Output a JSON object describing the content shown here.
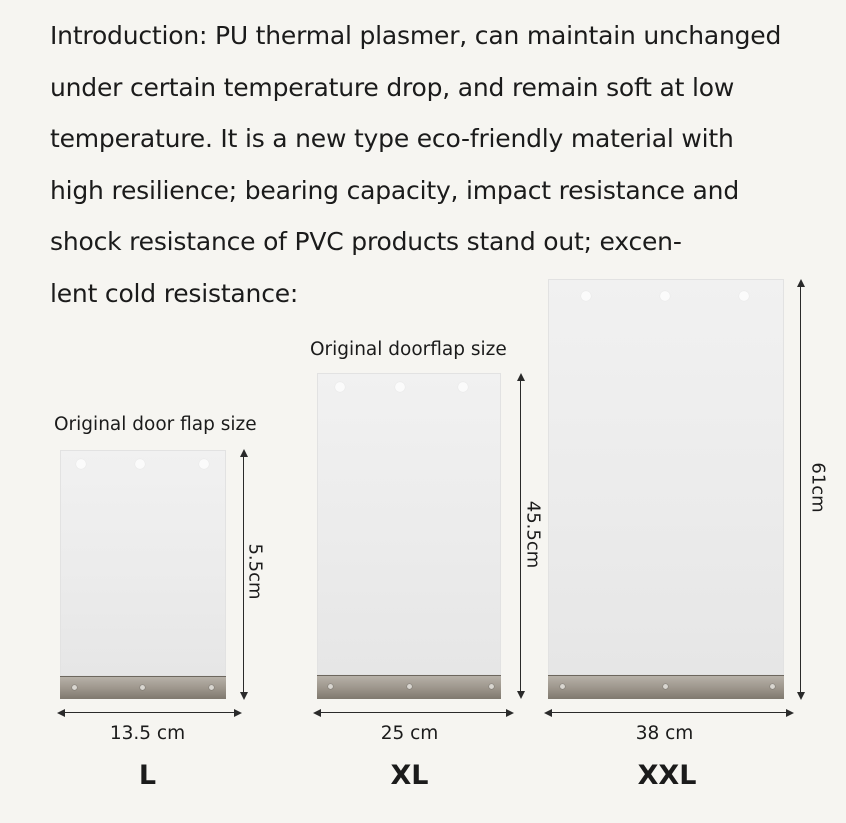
{
  "intro": {
    "lines": [
      "Introduction:  PU thermal plasmer, can maintain unchanged",
      "under certain temperature drop, and remain soft at low",
      "temperature. It is a new type eco-friendly material with",
      "high resilience; bearing capacity, impact resistance and",
      "shock resistance of PVC products stand out; excen-",
      "lent cold resistance:"
    ]
  },
  "flaps": {
    "l": {
      "caption": "Original door flap size",
      "height_label": "5.5cm",
      "width_label": "13.5 cm",
      "size": "L"
    },
    "xl": {
      "caption": "Original doorflap size",
      "height_label": "45.5cm",
      "width_label": "25 cm",
      "size": "XL"
    },
    "xxl": {
      "caption": "",
      "height_label": "61cm",
      "width_label": "38 cm",
      "size": "XXL"
    }
  }
}
